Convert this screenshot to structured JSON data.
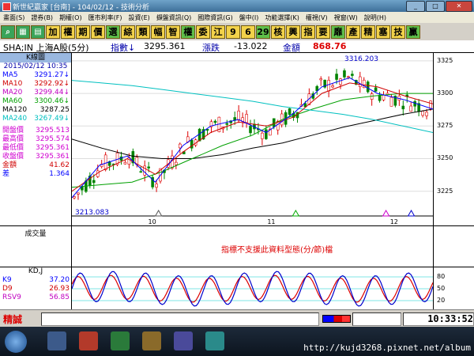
{
  "window": {
    "title": "新世紀贏家 [台南] - 104/02/12 - 技術分析"
  },
  "menu": [
    "畫面(S)",
    "證券(B)",
    "期權(O)",
    "匯市利率(F)",
    "設資(E)",
    "擷盤資訊(Q)",
    "國際資訊(G)",
    "盤中(I)",
    "功能選擇(K)",
    "權視(V)",
    "視窗(W)",
    "說明(H)"
  ],
  "toolbar": [
    "加",
    "權",
    "期",
    "價",
    "選",
    "綜",
    "類",
    "幅",
    "智",
    "權",
    "委",
    "江",
    "9",
    "6",
    "29",
    "核",
    "興",
    "指",
    "要",
    "靡",
    "產",
    "精",
    "塞",
    "技",
    "贏"
  ],
  "infobar": {
    "symbol": "SHA;IN 上海A股(5分)",
    "index_label": "指數↓",
    "index_value": "3295.361",
    "change_label": "漲跌",
    "change_value": "-13.022",
    "amount_label": "金額",
    "amount_value": "868.76"
  },
  "panel": {
    "header": "K線圖",
    "datetime": "2015/02/12 10:35",
    "ma": [
      {
        "k": "MA5",
        "v": "3291.27↓",
        "color": "#0000ff"
      },
      {
        "k": "MA10",
        "v": "3292.92↓",
        "color": "#d00000"
      },
      {
        "k": "MA20",
        "v": "3299.44↓",
        "color": "#c000c0"
      },
      {
        "k": "MA60",
        "v": "3300.46↓",
        "color": "#00a000"
      },
      {
        "k": "MA120",
        "v": "3287.25",
        "color": "#000000"
      },
      {
        "k": "MA240",
        "v": "3267.49↓",
        "color": "#00c0c0"
      }
    ],
    "prices": [
      {
        "k": "開盤價",
        "v": "3295.513"
      },
      {
        "k": "最高價",
        "v": "3295.574"
      },
      {
        "k": "最低價",
        "v": "3295.361"
      },
      {
        "k": "收盤價",
        "v": "3295.361"
      },
      {
        "k": "金額",
        "v": "41.62",
        "color": "#d00000"
      },
      {
        "k": "差",
        "v": "1.364",
        "color": "#0000ff"
      }
    ]
  },
  "chart_data": {
    "type": "line",
    "high_label": "3316.203",
    "low_label": "3213.083",
    "x_ticks": [
      "10",
      "11",
      "12"
    ],
    "y_ticks": [
      3325,
      3300,
      3275,
      3250,
      3225
    ],
    "ylim": [
      3206,
      3331
    ],
    "series": [
      {
        "color": "#000000",
        "values": [
          3265,
          3258,
          3252,
          3250,
          3250,
          3253,
          3258,
          3262,
          3268,
          3274,
          3279,
          3284,
          3288
        ]
      },
      {
        "color": "#00a000",
        "values": [
          3228,
          3230,
          3232,
          3240,
          3250,
          3260,
          3268,
          3280,
          3288,
          3295,
          3298,
          3300,
          3300
        ]
      },
      {
        "color": "#00c0c0",
        "values": [
          3310,
          3308,
          3306,
          3303,
          3300,
          3297,
          3294,
          3290,
          3287,
          3284,
          3280,
          3275,
          3270
        ]
      },
      {
        "color": "#d00000",
        "values": [
          3225,
          3240,
          3250,
          3238,
          3255,
          3270,
          3278,
          3275,
          3282,
          3300,
          3308,
          3305,
          3298,
          3292
        ]
      },
      {
        "color": "#0000ff",
        "values": [
          3220,
          3245,
          3252,
          3232,
          3260,
          3275,
          3280,
          3270,
          3285,
          3305,
          3312,
          3300,
          3295,
          3288
        ]
      }
    ]
  },
  "volume": {
    "label": "成交量",
    "message": "指標不支援此資料型態(分/節)檔"
  },
  "kd": {
    "header": "KD,J",
    "items": [
      {
        "k": "K9",
        "v": "37.20",
        "color": "#0000ff"
      },
      {
        "k": "D9",
        "v": "26.93",
        "color": "#d00000"
      },
      {
        "k": "RSV9",
        "v": "56.85",
        "color": "#c000c0"
      }
    ],
    "ticks": [
      "80",
      "50",
      "20"
    ]
  },
  "status": {
    "logo": "精誠",
    "time": "10:33:52"
  },
  "taskbar": {
    "url": "http://kujd3268.pixnet.net/album"
  }
}
